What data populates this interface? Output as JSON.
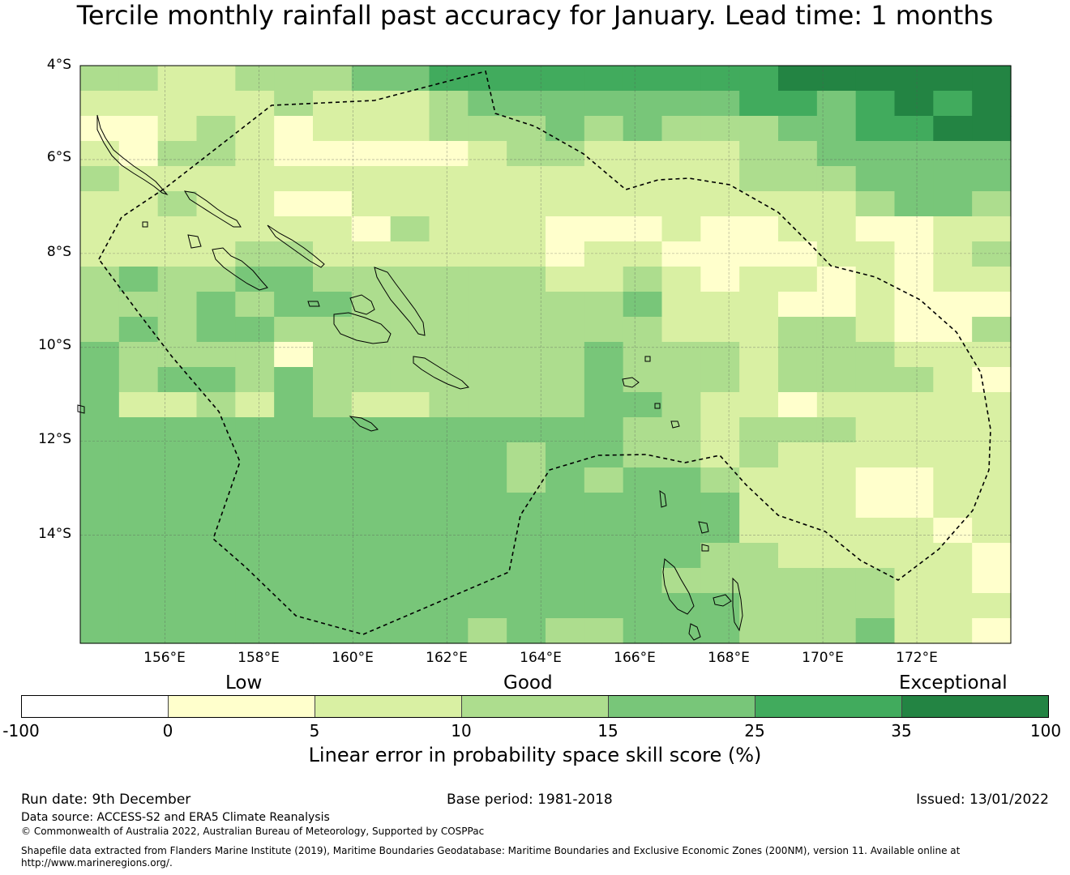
{
  "title": "Tercile monthly rainfall past accuracy for January. Lead time: 1 months",
  "map": {
    "lat_labels": [
      "4°S",
      "6°S",
      "8°S",
      "10°S",
      "12°S",
      "14°S"
    ],
    "lon_labels": [
      "156°E",
      "158°E",
      "160°E",
      "162°E",
      "164°E",
      "166°E",
      "168°E",
      "170°E",
      "172°E"
    ],
    "extent": {
      "lon_min": 154.2,
      "lon_max": 174.0,
      "lat_min": -16.3,
      "lat_max": -4.0
    },
    "skill_grid": [
      [
        2,
        2,
        1,
        1,
        2,
        2,
        2,
        3,
        3,
        4,
        4,
        4,
        4,
        4,
        4,
        4,
        4,
        4,
        5,
        5,
        5,
        5,
        5,
        5
      ],
      [
        1,
        1,
        1,
        1,
        1,
        2,
        1,
        1,
        1,
        2,
        3,
        3,
        3,
        3,
        3,
        3,
        3,
        4,
        4,
        3,
        4,
        5,
        4,
        5
      ],
      [
        0,
        0,
        1,
        2,
        1,
        0,
        1,
        1,
        1,
        2,
        2,
        2,
        3,
        2,
        3,
        2,
        2,
        2,
        3,
        3,
        4,
        4,
        5,
        5
      ],
      [
        1,
        0,
        2,
        2,
        1,
        0,
        0,
        0,
        0,
        0,
        1,
        2,
        2,
        1,
        1,
        1,
        1,
        2,
        2,
        3,
        3,
        3,
        3,
        3
      ],
      [
        2,
        1,
        1,
        1,
        1,
        1,
        1,
        1,
        1,
        1,
        1,
        1,
        1,
        1,
        1,
        1,
        1,
        2,
        2,
        2,
        3,
        3,
        3,
        3
      ],
      [
        1,
        1,
        2,
        1,
        1,
        0,
        0,
        1,
        1,
        1,
        1,
        1,
        1,
        1,
        1,
        1,
        1,
        1,
        1,
        1,
        2,
        3,
        3,
        2
      ],
      [
        1,
        1,
        1,
        1,
        1,
        1,
        1,
        0,
        2,
        1,
        1,
        1,
        0,
        0,
        0,
        1,
        0,
        0,
        1,
        1,
        0,
        0,
        1,
        1
      ],
      [
        1,
        1,
        1,
        1,
        2,
        2,
        1,
        1,
        1,
        1,
        1,
        1,
        0,
        1,
        1,
        0,
        0,
        0,
        0,
        1,
        1,
        0,
        1,
        2
      ],
      [
        2,
        3,
        2,
        2,
        3,
        3,
        2,
        2,
        2,
        2,
        2,
        2,
        1,
        1,
        2,
        1,
        0,
        1,
        1,
        0,
        1,
        0,
        1,
        1
      ],
      [
        2,
        2,
        2,
        3,
        2,
        3,
        3,
        2,
        2,
        2,
        2,
        2,
        2,
        2,
        3,
        1,
        1,
        1,
        0,
        0,
        1,
        0,
        0,
        0
      ],
      [
        2,
        3,
        2,
        3,
        3,
        2,
        2,
        2,
        2,
        2,
        2,
        2,
        2,
        2,
        2,
        1,
        1,
        1,
        2,
        2,
        1,
        0,
        0,
        2
      ],
      [
        3,
        2,
        2,
        2,
        2,
        0,
        2,
        2,
        2,
        2,
        2,
        2,
        2,
        3,
        2,
        2,
        2,
        1,
        2,
        2,
        2,
        1,
        1,
        1
      ],
      [
        3,
        2,
        3,
        3,
        2,
        3,
        2,
        2,
        2,
        2,
        2,
        2,
        2,
        3,
        2,
        2,
        2,
        1,
        2,
        2,
        2,
        2,
        1,
        0
      ],
      [
        3,
        1,
        1,
        2,
        1,
        3,
        2,
        1,
        1,
        2,
        2,
        2,
        2,
        3,
        3,
        2,
        1,
        1,
        0,
        1,
        1,
        1,
        1,
        1
      ],
      [
        3,
        3,
        3,
        3,
        3,
        3,
        3,
        3,
        3,
        3,
        3,
        3,
        3,
        3,
        2,
        2,
        1,
        2,
        2,
        2,
        1,
        1,
        1,
        1
      ],
      [
        3,
        3,
        3,
        3,
        3,
        3,
        3,
        3,
        3,
        3,
        3,
        2,
        3,
        3,
        2,
        2,
        1,
        2,
        1,
        1,
        1,
        1,
        1,
        1
      ],
      [
        3,
        3,
        3,
        3,
        3,
        3,
        3,
        3,
        3,
        3,
        3,
        2,
        3,
        2,
        3,
        3,
        2,
        1,
        1,
        1,
        0,
        0,
        1,
        1
      ],
      [
        3,
        3,
        3,
        3,
        3,
        3,
        3,
        3,
        3,
        3,
        3,
        3,
        3,
        3,
        3,
        3,
        3,
        1,
        1,
        1,
        0,
        0,
        1,
        1
      ],
      [
        3,
        3,
        3,
        3,
        3,
        3,
        3,
        3,
        3,
        3,
        3,
        3,
        3,
        3,
        3,
        3,
        3,
        1,
        1,
        1,
        1,
        1,
        0,
        1
      ],
      [
        3,
        3,
        3,
        3,
        3,
        3,
        3,
        3,
        3,
        3,
        3,
        3,
        3,
        3,
        3,
        3,
        2,
        2,
        1,
        1,
        1,
        1,
        1,
        0
      ],
      [
        3,
        3,
        3,
        3,
        3,
        3,
        3,
        3,
        3,
        3,
        3,
        3,
        3,
        3,
        3,
        2,
        2,
        2,
        2,
        2,
        2,
        1,
        1,
        0
      ],
      [
        3,
        3,
        3,
        3,
        3,
        3,
        3,
        3,
        3,
        3,
        3,
        3,
        3,
        3,
        3,
        3,
        3,
        2,
        2,
        2,
        2,
        1,
        1,
        1
      ],
      [
        3,
        3,
        3,
        3,
        3,
        3,
        3,
        3,
        3,
        3,
        2,
        3,
        2,
        2,
        3,
        3,
        3,
        2,
        2,
        2,
        3,
        1,
        1,
        0
      ]
    ]
  },
  "legend": {
    "categories": [
      "Low",
      "Good",
      "Exceptional"
    ],
    "ticks": [
      "-100",
      "0",
      "5",
      "10",
      "15",
      "25",
      "35",
      "100"
    ],
    "colors": [
      "#ffffff",
      "#ffffcc",
      "#d9f0a3",
      "#addd8e",
      "#78c679",
      "#41ab5d",
      "#238443"
    ],
    "title": "Linear error in probability space skill score (%)"
  },
  "footer": {
    "run_date": "Run date: 9th December",
    "base_period": "Base period: 1981-2018",
    "issued": "Issued: 13/01/2022",
    "data_source": "Data source: ACCESS-S2 and ERA5 Climate Reanalysis",
    "copyright": "© Commonwealth of Australia 2022, Australian Bureau of Meteorology, Supported by COSPPac",
    "shapefile_line1": "Shapefile data extracted from Flanders Marine Institute (2019), Maritime Boundaries Geodatabase: Maritime Boundaries and Exclusive Economic Zones (200NM), version 11. Available online at",
    "shapefile_line2": "http://www.marineregions.org/."
  }
}
